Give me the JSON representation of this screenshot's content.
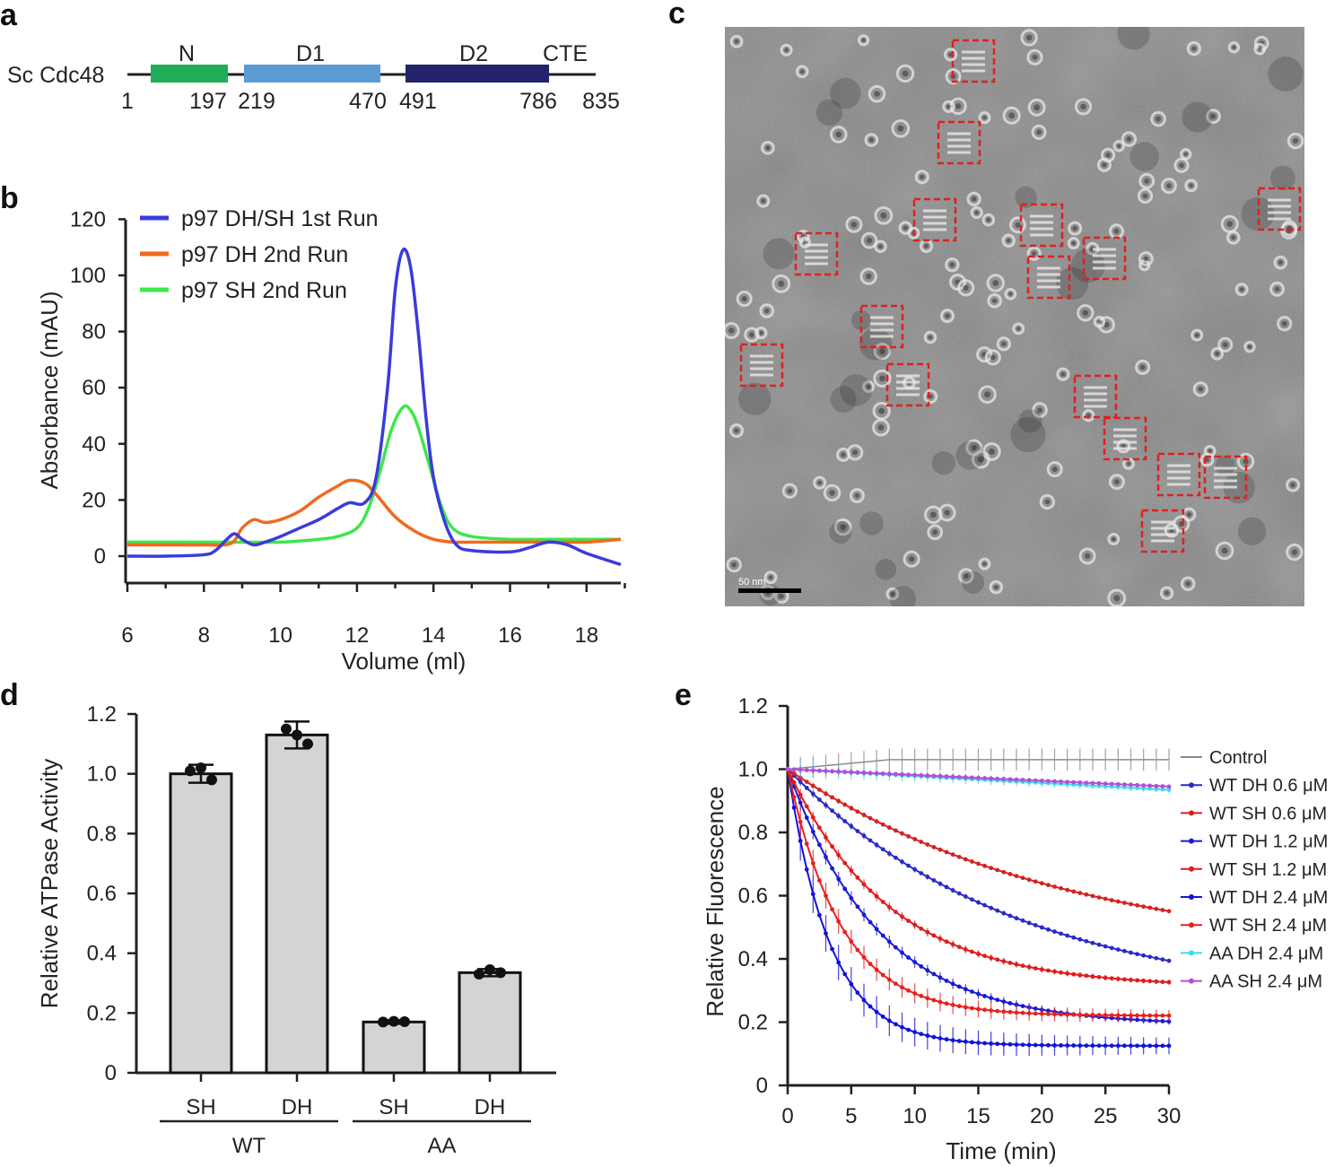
{
  "panels": {
    "a": {
      "label": "a",
      "protein": "Sc Cdc48",
      "domains": [
        {
          "name": "N",
          "start": 1,
          "end": 197,
          "color": "#1fae57"
        },
        {
          "name": "D1",
          "start": 219,
          "end": 470,
          "color": "#5b9bd5"
        },
        {
          "name": "D2",
          "start": 491,
          "end": 786,
          "color": "#23236b"
        },
        {
          "name": "CTE",
          "start": 786,
          "end": 835,
          "color": null
        }
      ],
      "positions": [
        "1",
        "197",
        "219",
        "470",
        "491",
        "786",
        "835"
      ]
    },
    "b": {
      "label": "b"
    },
    "c": {
      "label": "c",
      "scale_bar": "50 nm",
      "box_color": "#e02020"
    },
    "d": {
      "label": "d"
    },
    "e": {
      "label": "e"
    }
  },
  "chart_data": [
    {
      "id": "b",
      "type": "line",
      "xlabel": "Volume (ml)",
      "ylabel": "Absorbance (mAU)",
      "xlim": [
        6,
        19
      ],
      "ylim": [
        -5,
        125
      ],
      "xticks": [
        6,
        8,
        10,
        12,
        14,
        16,
        18
      ],
      "yticks": [
        0,
        20,
        40,
        60,
        80,
        100,
        120
      ],
      "legend": "top-left",
      "series": [
        {
          "name": "p97 DH/SH 1st Run",
          "color": "#3b3bdb",
          "x": [
            6,
            7,
            8,
            8.3,
            8.6,
            8.8,
            9.0,
            9.3,
            9.6,
            10,
            10.5,
            11,
            11.5,
            11.8,
            12.2,
            12.5,
            12.8,
            13.0,
            13.2,
            13.4,
            13.6,
            13.8,
            14.0,
            14.3,
            14.6,
            15,
            16,
            16.5,
            17,
            17.5,
            18,
            19
          ],
          "y": [
            0,
            0,
            0.5,
            2,
            6,
            8,
            6,
            4,
            5,
            7,
            10,
            13,
            17,
            19,
            19,
            28,
            60,
            95,
            109,
            103,
            80,
            50,
            28,
            12,
            4,
            2,
            1.5,
            3,
            5,
            4,
            1,
            -3
          ]
        },
        {
          "name": "p97 DH 2nd Run",
          "color": "#f06a1e",
          "x": [
            6,
            7,
            8,
            8.7,
            9.0,
            9.3,
            9.6,
            10,
            10.5,
            11,
            11.5,
            11.8,
            12.2,
            12.5,
            13,
            13.5,
            14,
            14.5,
            15,
            16,
            17,
            18,
            19
          ],
          "y": [
            4,
            4,
            4,
            4.5,
            10,
            13,
            12,
            13,
            16,
            21,
            25,
            27,
            26,
            22,
            14,
            9,
            6,
            5,
            5,
            5,
            5,
            5,
            6
          ]
        },
        {
          "name": "p97 SH 2nd Run",
          "color": "#3ee64a",
          "x": [
            6,
            7,
            8,
            9,
            10,
            11,
            11.5,
            12,
            12.3,
            12.6,
            12.9,
            13.2,
            13.4,
            13.6,
            13.9,
            14.2,
            14.5,
            15,
            16,
            17,
            18,
            19
          ],
          "y": [
            5,
            5,
            5,
            5,
            5,
            6,
            7,
            10,
            17,
            30,
            45,
            53,
            52,
            46,
            32,
            18,
            10,
            7,
            6,
            6,
            6,
            6
          ]
        }
      ]
    },
    {
      "id": "d",
      "type": "bar",
      "ylabel": "Relative ATPase Activity",
      "ylim": [
        0,
        1.2
      ],
      "yticks": [
        "0",
        "0.2",
        "0.4",
        "0.6",
        "0.8",
        "1.0",
        "1.2"
      ],
      "categories": [
        "SH",
        "DH",
        "SH",
        "DH"
      ],
      "groups": [
        {
          "name": "WT",
          "span": [
            0,
            1
          ]
        },
        {
          "name": "AA",
          "span": [
            2,
            3
          ]
        }
      ],
      "values": [
        1.0,
        1.13,
        0.17,
        0.335
      ],
      "errors": [
        0.03,
        0.045,
        0.006,
        0.012
      ],
      "points": [
        [
          1.01,
          1.02,
          0.98
        ],
        [
          1.15,
          1.13,
          1.1
        ],
        [
          0.17,
          0.172,
          0.171
        ],
        [
          0.33,
          0.345,
          0.335
        ]
      ],
      "bar_color": "#d4d4d4"
    },
    {
      "id": "e",
      "type": "line",
      "xlabel": "Time (min)",
      "ylabel": "Relative Fluorescence",
      "xlim": [
        0,
        30
      ],
      "ylim": [
        0,
        1.2
      ],
      "xticks": [
        "0",
        "5",
        "10",
        "15",
        "20",
        "25",
        "30"
      ],
      "yticks": [
        "0",
        "0.2",
        "0.4",
        "0.6",
        "0.8",
        "1.0",
        "1.2"
      ],
      "legend": "right",
      "series": [
        {
          "name": "Control",
          "color": "#8c8c8c",
          "plateau": 1.03,
          "k": -0.5,
          "err": 0.035
        },
        {
          "name": "WT DH 0.6 μM",
          "color": "#2a2ac8",
          "plateau": 0.25,
          "k": 0.055,
          "err": 0.01
        },
        {
          "name": "WT SH 0.6 μM",
          "color": "#d42222",
          "plateau": 0.4,
          "k": 0.046,
          "err": 0.008
        },
        {
          "name": "WT DH 1.2 μM",
          "color": "#1a1ad4",
          "plateau": 0.19,
          "k": 0.14,
          "err": 0.02
        },
        {
          "name": "WT SH 1.2 μM",
          "color": "#e01c1c",
          "plateau": 0.31,
          "k": 0.125,
          "err": 0.015
        },
        {
          "name": "WT DH 2.4 μM",
          "color": "#1212d8",
          "plateau": 0.125,
          "k": 0.3,
          "err": 0.05
        },
        {
          "name": "WT SH 2.4 μM",
          "color": "#e82020",
          "plateau": 0.22,
          "k": 0.24,
          "err": 0.035
        },
        {
          "name": "AA DH 2.4 μM",
          "color": "#3fd9ea",
          "plateau": 0.935,
          "k": 0.0,
          "err": 0.02
        },
        {
          "name": "AA SH 2.4 μM",
          "color": "#b24fd9",
          "plateau": 0.945,
          "k": 0.0,
          "err": 0.01
        }
      ]
    }
  ]
}
